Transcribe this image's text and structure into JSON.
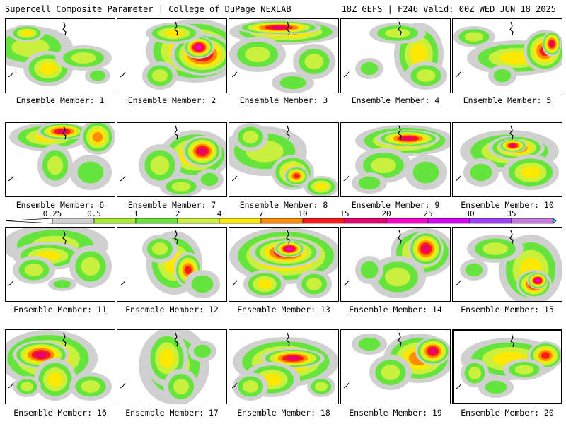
{
  "header": {
    "left": "Supercell Composite Parameter | College of DuPage NEXLAB",
    "right": "18Z GEFS | F246 Valid: 00Z WED JUN 18 2025"
  },
  "colorbar": {
    "labels": [
      "0.25",
      "0.5",
      "1",
      "2",
      "4",
      "7",
      "10",
      "15",
      "20",
      "25",
      "30",
      "35"
    ],
    "colors": [
      "#d0d0d0",
      "#a6ec2c",
      "#64e43c",
      "#c8f03c",
      "#ffe800",
      "#ff8c00",
      "#ff1a1a",
      "#e8006e",
      "#ff00c8",
      "#d800ff",
      "#a040ff",
      "#c878e0",
      "#40e8ff"
    ]
  },
  "members": [
    {
      "label": "Ensemble Member: 1"
    },
    {
      "label": "Ensemble Member: 2"
    },
    {
      "label": "Ensemble Member: 3"
    },
    {
      "label": "Ensemble Member: 4"
    },
    {
      "label": "Ensemble Member: 5"
    },
    {
      "label": "Ensemble Member: 6"
    },
    {
      "label": "Ensemble Member: 7"
    },
    {
      "label": "Ensemble Member: 8"
    },
    {
      "label": "Ensemble Member: 9"
    },
    {
      "label": "Ensemble Member: 10"
    },
    {
      "label": "Ensemble Member: 11"
    },
    {
      "label": "Ensemble Member: 12"
    },
    {
      "label": "Ensemble Member: 13"
    },
    {
      "label": "Ensemble Member: 14"
    },
    {
      "label": "Ensemble Member: 15"
    },
    {
      "label": "Ensemble Member: 16"
    },
    {
      "label": "Ensemble Member: 17"
    },
    {
      "label": "Ensemble Member: 18"
    },
    {
      "label": "Ensemble Member: 19"
    },
    {
      "label": "Ensemble Member: 20",
      "selected": true
    }
  ]
}
